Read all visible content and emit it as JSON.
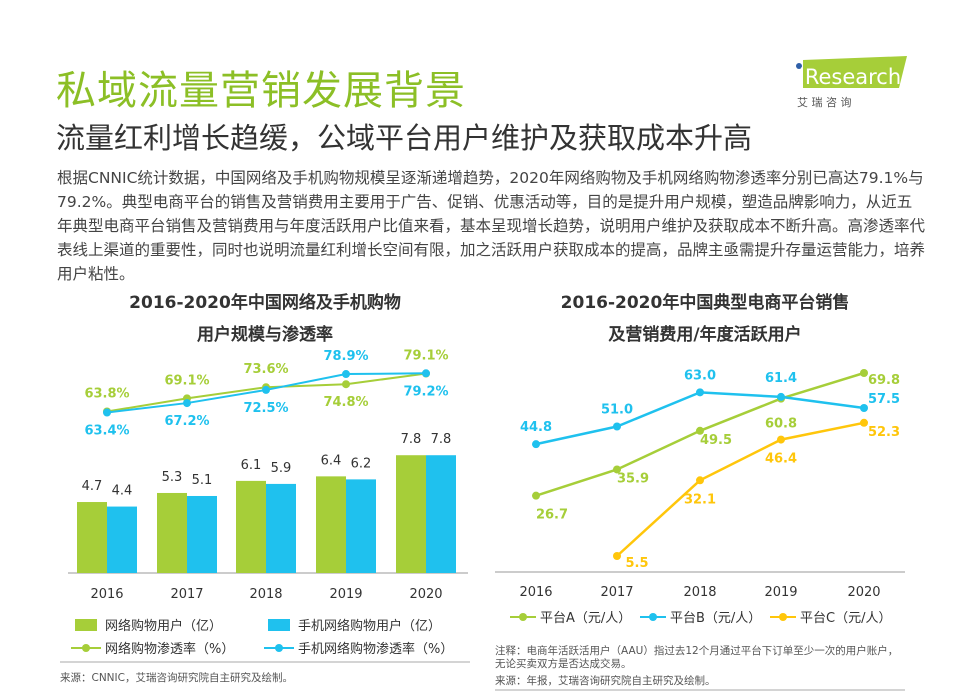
{
  "header": {
    "title": "私域流量营销发展背景",
    "subtitle": "流量红利增长趋缓，公域平台用户维护及获取成本升高",
    "logo_text": "iResearch",
    "logo_sub": "艾 瑞 咨 询"
  },
  "body_text": "根据CNNIC统计数据，中国网络及手机购物规模呈逐渐递增趋势，2020年网络购物及手机网络购物渗透率分别已高达79.1%与79.2%。典型电商平台的销售及营销费用主要用于广告、促销、优惠活动等，目的是提升用户规模，塑造品牌影响力，从近五年典型电商平台销售及营销费用与年度活跃用户比值来看，基本呈现增长趋势，说明用户维护及获取成本不断升高。高渗透率代表线上渠道的重要性，同时也说明流量红利增长空间有限，加之活跃用户获取成本的提高，品牌主亟需提升存量运营能力，培养用户粘性。",
  "colors": {
    "green": "#a6ce39",
    "blue": "#1fc1ee",
    "yellow": "#ffc60b",
    "title_green": "#8cbf26"
  },
  "chart_data": [
    {
      "type": "bar+line",
      "title_line1": "2016-2020年中国网络及手机购物",
      "title_line2": "用户规模与渗透率",
      "categories": [
        "2016",
        "2017",
        "2018",
        "2019",
        "2020"
      ],
      "series": [
        {
          "name": "网络购物用户（亿）",
          "kind": "bar",
          "color": "#a6ce39",
          "values": [
            4.7,
            5.3,
            6.1,
            6.4,
            7.8
          ]
        },
        {
          "name": "手机网络购物用户（亿）",
          "kind": "bar",
          "color": "#1fc1ee",
          "values": [
            4.4,
            5.1,
            5.9,
            6.2,
            7.8
          ]
        },
        {
          "name": "网络购物渗透率（%）",
          "kind": "line",
          "color": "#a6ce39",
          "values": [
            63.8,
            69.1,
            73.6,
            74.8,
            79.1
          ]
        },
        {
          "name": "手机网络购物渗透率（%）",
          "kind": "line",
          "color": "#1fc1ee",
          "values": [
            63.4,
            67.2,
            72.5,
            78.9,
            79.2
          ]
        }
      ],
      "source": "来源：CNNIC，艾瑞咨询研究院自主研究及绘制。"
    },
    {
      "type": "line",
      "title_line1": "2016-2020年中国典型电商平台销售",
      "title_line2": "及营销费用/年度活跃用户",
      "categories": [
        "2016",
        "2017",
        "2018",
        "2019",
        "2020"
      ],
      "series": [
        {
          "name": "平台A（元/人）",
          "color": "#a6ce39",
          "values": [
            26.7,
            35.9,
            49.5,
            60.8,
            69.8
          ]
        },
        {
          "name": "平台B（元/人）",
          "color": "#1fc1ee",
          "values": [
            44.8,
            51.0,
            63.0,
            61.4,
            57.5
          ]
        },
        {
          "name": "平台C（元/人）",
          "color": "#ffc60b",
          "values": [
            null,
            5.5,
            32.1,
            46.4,
            52.3
          ]
        }
      ],
      "note": "注释：电商年活跃活用户（AAU）指过去12个月通过平台下订单至少一次的用户账户，无论买卖双方是否达成交易。",
      "source": "来源：年报，艾瑞咨询研究院自主研究及绘制。"
    }
  ]
}
